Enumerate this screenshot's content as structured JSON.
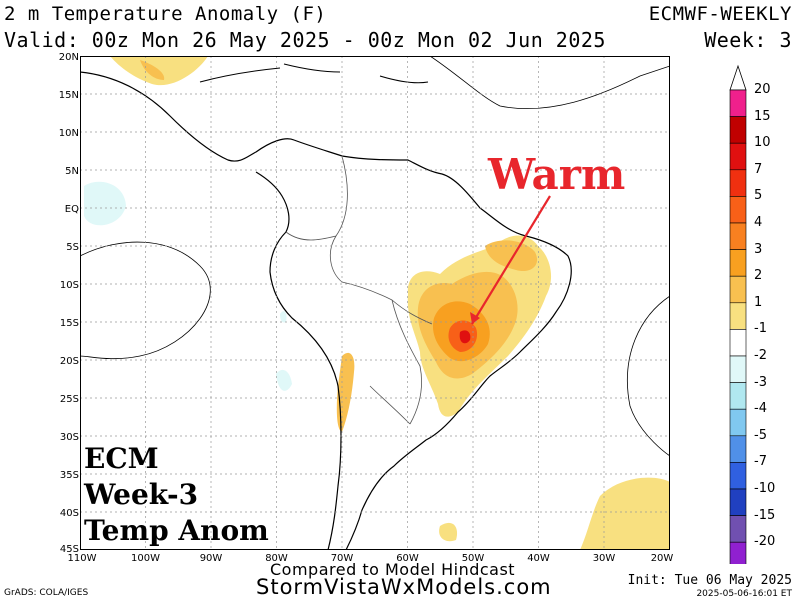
{
  "header": {
    "title": "2 m Temperature Anomaly (F)",
    "valid": "Valid: 00z Mon 26 May 2025 - 00z Mon 02 Jun 2025",
    "model": "ECMWF-WEEKLY",
    "week": "Week: 3"
  },
  "map": {
    "lat_labels": [
      "20N",
      "15N",
      "10N",
      "5N",
      "EQ",
      "5S",
      "10S",
      "15S",
      "20S",
      "25S",
      "30S",
      "35S",
      "40S",
      "45S"
    ],
    "lon_labels": [
      "110W",
      "100W",
      "90W",
      "80W",
      "70W",
      "60W",
      "50W",
      "40W",
      "30W",
      "20W"
    ],
    "lat_range": [
      20,
      -45
    ],
    "lon_range": [
      -110,
      -20
    ]
  },
  "colorbar": {
    "levels": [
      "20",
      "15",
      "10",
      "7",
      "5",
      "4",
      "3",
      "2",
      "1",
      "-1",
      "-2",
      "-3",
      "-4",
      "-5",
      "-7",
      "-10",
      "-15",
      "-20"
    ],
    "colors": {
      "over_15": "#f0208c",
      "c10_15": "#c00000",
      "c7_10": "#e01010",
      "c5_7": "#f03010",
      "c4_5": "#f86018",
      "c3_4": "#f88020",
      "c2_3": "#f8a020",
      "c1_2": "#f8c050",
      "c0_1": "#f8e080",
      "neutral": "#ffffff",
      "m1_2": "#e0f8f8",
      "m2_3": "#b0e8f0",
      "m3_4": "#80c8f0",
      "m4_5": "#5090e8",
      "m5_7": "#3060e0",
      "m7_10": "#2040c0",
      "m10_15": "#7050b0",
      "m15_20": "#9020d0"
    }
  },
  "annotations": {
    "warm": "Warm",
    "line1": "ECM",
    "line2": "Week-3",
    "line3": "Temp Anom"
  },
  "footer": {
    "compared": "Compared to Model Hindcast",
    "site": "StormVistaWxModels.com",
    "grads": "GrADS: COLA/IGES",
    "init": "Init: Tue 06 May 2025",
    "stamp": "2025-05-06-16:01 ET"
  }
}
